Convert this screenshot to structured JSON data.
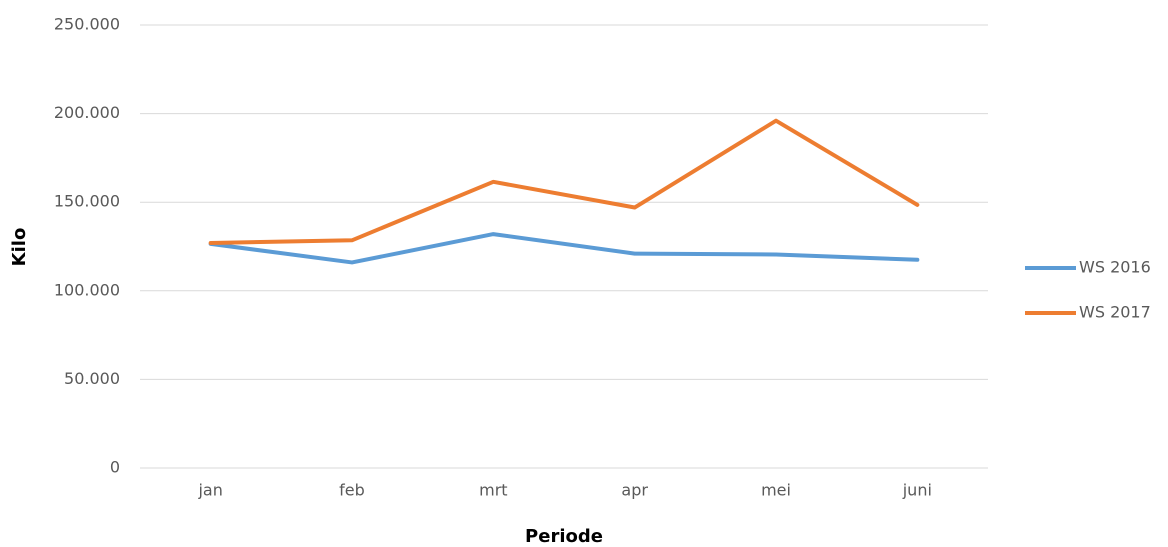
{
  "chart_data": {
    "type": "line",
    "x_label": "Periode",
    "y_label": "Kilo",
    "categories": [
      "jan",
      "feb",
      "mrt",
      "apr",
      "mei",
      "juni"
    ],
    "series": [
      {
        "name": "WS 2016",
        "color": "#5b9bd5",
        "values": [
          126500,
          116000,
          132000,
          121000,
          120500,
          117500
        ]
      },
      {
        "name": "WS 2017",
        "color": "#ed7d31",
        "values": [
          127000,
          128500,
          161500,
          147000,
          196000,
          148500
        ]
      }
    ],
    "ylim": [
      0,
      250000
    ],
    "yticks": [
      0,
      {
        "value": 50000,
        "label": "50.000"
      },
      {
        "value": 100000,
        "label": "100.000"
      },
      {
        "value": 150000,
        "label": "150.000"
      },
      {
        "value": 200000,
        "label": "200.000"
      },
      {
        "value": 250000,
        "label": "250.000"
      }
    ],
    "grid": true,
    "legend": "right"
  }
}
